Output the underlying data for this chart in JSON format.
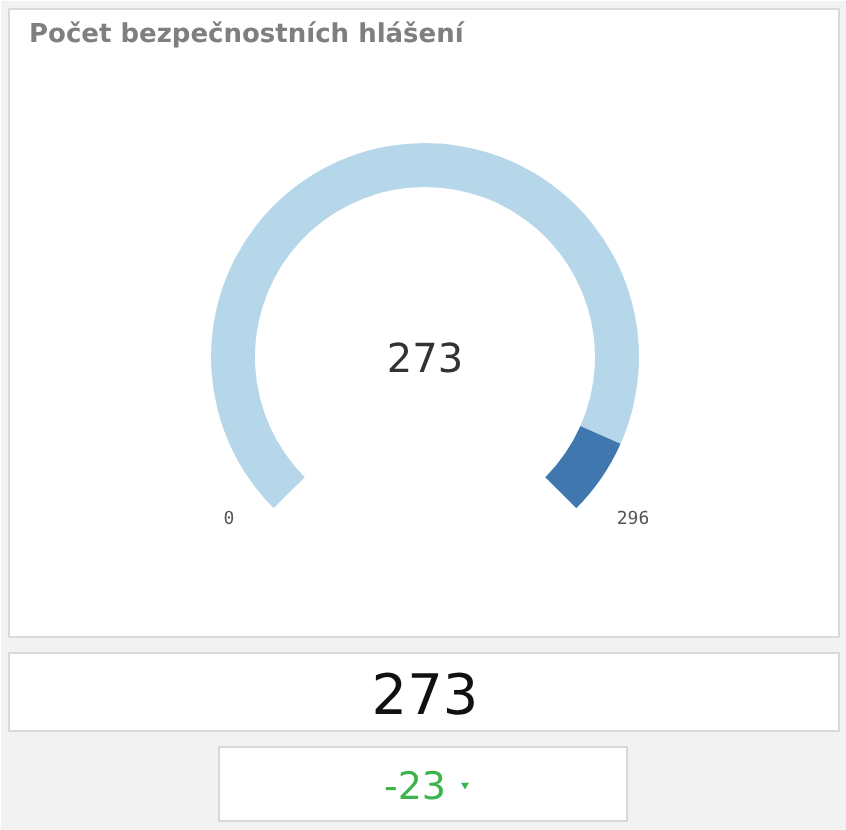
{
  "chart_data": {
    "type": "donut",
    "title": "Počet bezpečnostních hlášení",
    "categories": [
      null,
      null
    ],
    "values": [
      92.2,
      7.8
    ],
    "colors": [
      "#b6d7ea",
      "#3f77ae"
    ],
    "annotations": [
      "273",
      "0",
      "296",
      "273",
      "-23"
    ]
  }
}
